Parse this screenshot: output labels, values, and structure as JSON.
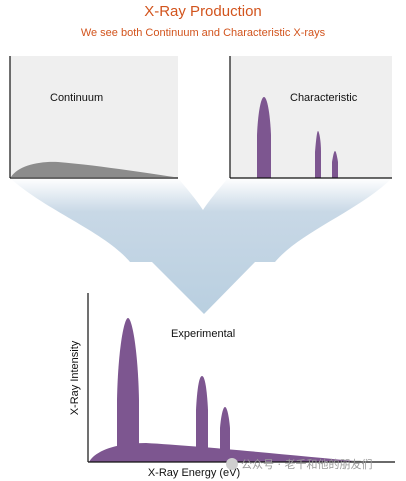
{
  "title": "X-Ray Production",
  "subtitle": "We see both Continuum and Characteristic X-rays",
  "panels": {
    "continuum": "Continuum",
    "characteristic": "Characteristic",
    "experimental": "Experimental"
  },
  "axes": {
    "y_label": "X-Ray Intensity",
    "x_label": "X-Ray Energy (eV)"
  },
  "watermark": "公众号 · 老千和他的朋友们",
  "colors": {
    "title": "#d2541d",
    "peak_fill": "#7d5690",
    "continuum_fill": "#8c8c8c",
    "arrow_fill": "#c8d8e6",
    "panel_bg": "#efefef"
  }
}
